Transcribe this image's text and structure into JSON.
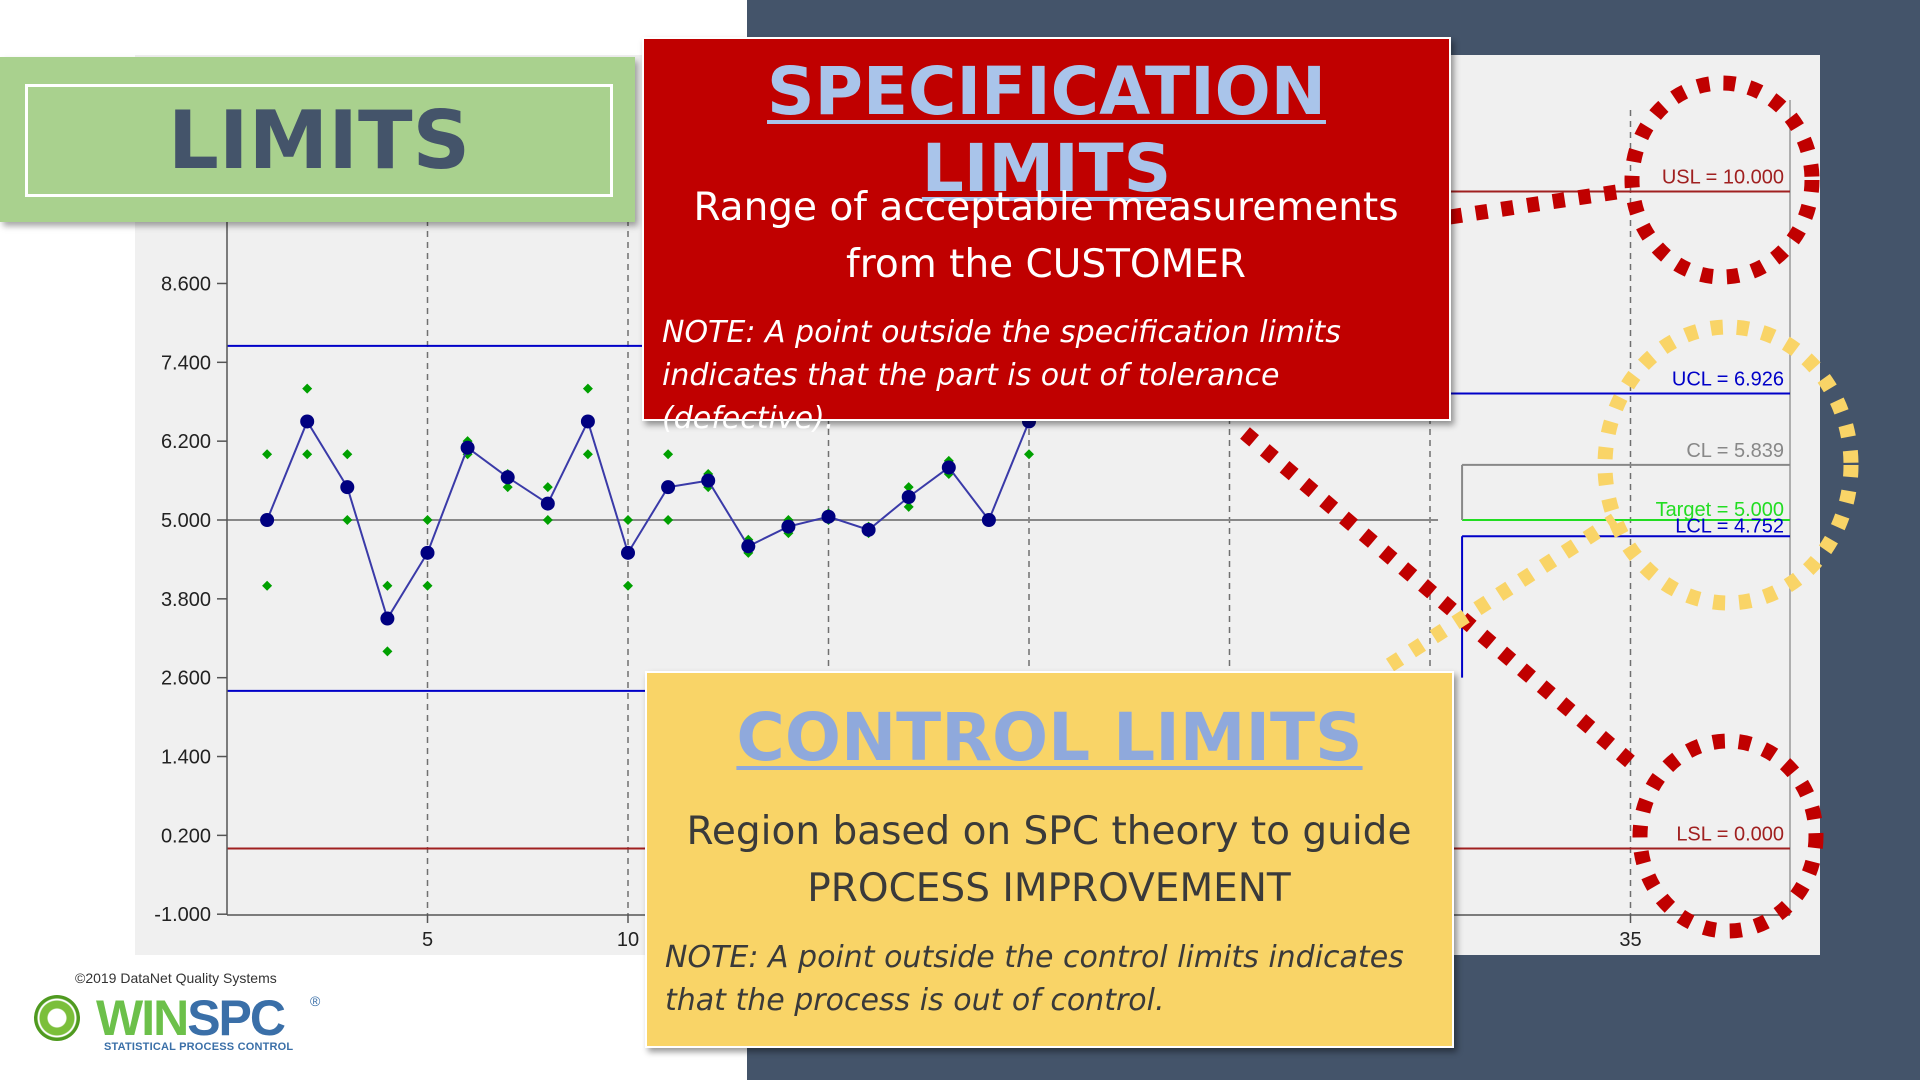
{
  "colors": {
    "navy": "#44546a",
    "green_box": "#a9d18e",
    "spec_red": "#c00000",
    "control_yellow": "#f9d467",
    "point_navy": "#000080",
    "point_green": "#00a000"
  },
  "limits_box": {
    "title": "LIMITS"
  },
  "spec_box": {
    "title": "SPECIFICATION LIMITS",
    "desc_line1": "Range of acceptable measurements",
    "desc_line2": "from the CUSTOMER",
    "note_line1": "NOTE: A point outside the specification limits",
    "note_line2": "indicates that the part is out of tolerance (defective)."
  },
  "control_box": {
    "title": "CONTROL LIMITS",
    "desc_line1": "Region based on SPC theory to guide",
    "desc_line2": "PROCESS IMPROVEMENT",
    "note_line1": "NOTE: A point outside the control limits indicates",
    "note_line2": "that the process is out of control."
  },
  "footer": {
    "copyright": "©2019 DataNet Quality Systems",
    "logo_win": "WIN",
    "logo_spc": "SPC",
    "logo_reg": "®",
    "logo_tagline": "STATISTICAL PROCESS CONTROL"
  },
  "chart_data": {
    "type": "line",
    "ylim": [
      -1.6,
      10.6
    ],
    "xlim": [
      0,
      39
    ],
    "y_ticks": [
      "8.600",
      "7.400",
      "6.200",
      "5.000",
      "3.800",
      "2.600",
      "1.400",
      "0.200",
      "-1.000"
    ],
    "x_ticks": [
      "5",
      "10",
      "35"
    ],
    "x_gridlines": [
      5,
      10,
      15,
      20,
      25,
      30,
      35
    ],
    "series": [
      {
        "x": [
          1,
          2,
          3,
          4,
          5,
          6,
          7,
          8,
          9,
          10,
          11,
          12,
          13,
          14,
          15,
          16,
          17,
          18,
          19,
          20
        ],
        "values": [
          5.0,
          6.5,
          5.5,
          3.5,
          4.5,
          6.1,
          5.65,
          5.25,
          6.5,
          4.5,
          5.5,
          5.6,
          4.6,
          4.9,
          5.05,
          4.85,
          5.35,
          5.8,
          5.0,
          6.5
        ]
      },
      {
        "x": [
          1,
          1,
          2,
          2,
          3,
          3,
          4,
          4,
          5,
          5,
          6,
          6,
          7,
          7,
          8,
          8,
          9,
          9,
          10,
          10,
          11,
          11,
          12,
          12,
          13,
          13,
          14,
          14,
          15,
          15,
          16,
          16,
          17,
          17,
          18,
          18,
          19,
          19,
          20,
          20
        ],
        "values": [
          6.0,
          4.0,
          7.0,
          6.0,
          6.0,
          5.0,
          4.0,
          3.0,
          5.0,
          4.0,
          6.2,
          6.0,
          5.7,
          5.5,
          5.5,
          5.0,
          7.0,
          6.0,
          5.0,
          4.0,
          6.0,
          5.0,
          5.7,
          5.5,
          4.7,
          4.5,
          5.0,
          4.8,
          5.1,
          5.0,
          4.9,
          4.8,
          5.5,
          5.2,
          5.9,
          5.7,
          5.0,
          5.0,
          6.5,
          6.0
        ]
      }
    ],
    "limits": [
      {
        "label": "USL = 10.000",
        "value": 10.0,
        "color": "#a02020"
      },
      {
        "label": "UCL = 6.926",
        "value": 6.926,
        "color": "#0000c8"
      },
      {
        "label": "CL = 5.839",
        "value": 5.839,
        "color": "#888888"
      },
      {
        "label": "Target = 5.000",
        "value": 5.0,
        "color": "#22dd22"
      },
      {
        "label": "LCL = 4.752",
        "value": 4.752,
        "color": "#0000c8"
      },
      {
        "label": "LSL = 0.000",
        "value": 0.0,
        "color": "#a02020"
      }
    ],
    "segment1_limits": {
      "ucl": 7.65,
      "lcl": 2.4,
      "cl": 5.0
    }
  }
}
